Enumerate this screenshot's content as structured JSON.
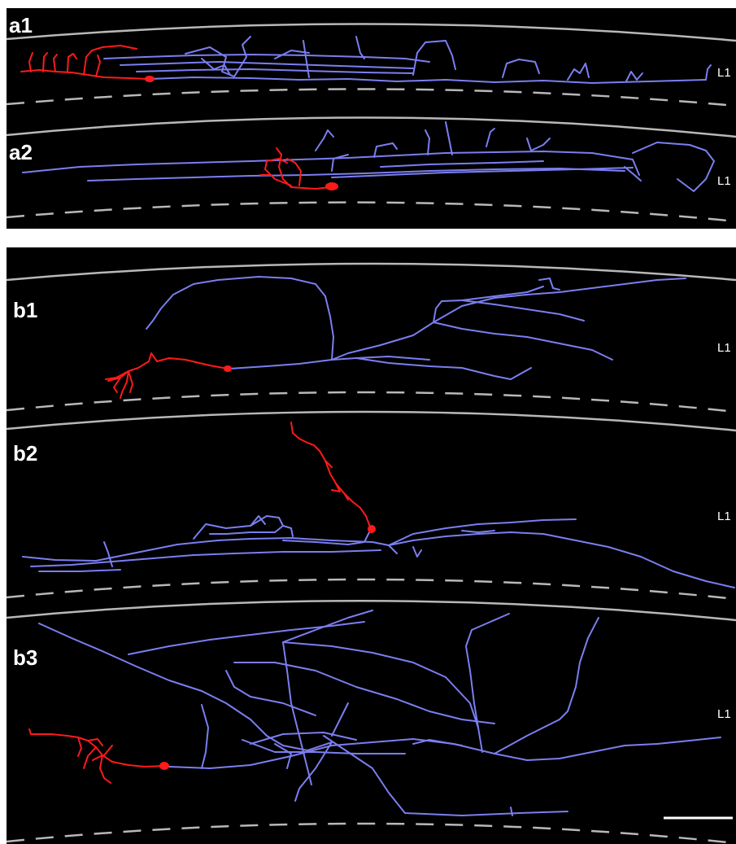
{
  "panels": [
    {
      "id": "a1",
      "label": "a1",
      "layer": "L1"
    },
    {
      "id": "a2",
      "label": "a2",
      "layer": "L1"
    },
    {
      "id": "b1",
      "label": "b1",
      "layer": "L1"
    },
    {
      "id": "b2",
      "label": "b2",
      "layer": "L1"
    },
    {
      "id": "b3",
      "label": "b3",
      "layer": "L1"
    }
  ],
  "colors": {
    "background": "#000000",
    "axon": "#7b7ef0",
    "soma_dendrite": "#ff1a1a",
    "pia_boundary": "#b8b8b8",
    "layer_boundary": "#b8b8b8",
    "scale_bar": "#ffffff"
  },
  "icons": {
    "scale_bar": "scale-bar"
  }
}
